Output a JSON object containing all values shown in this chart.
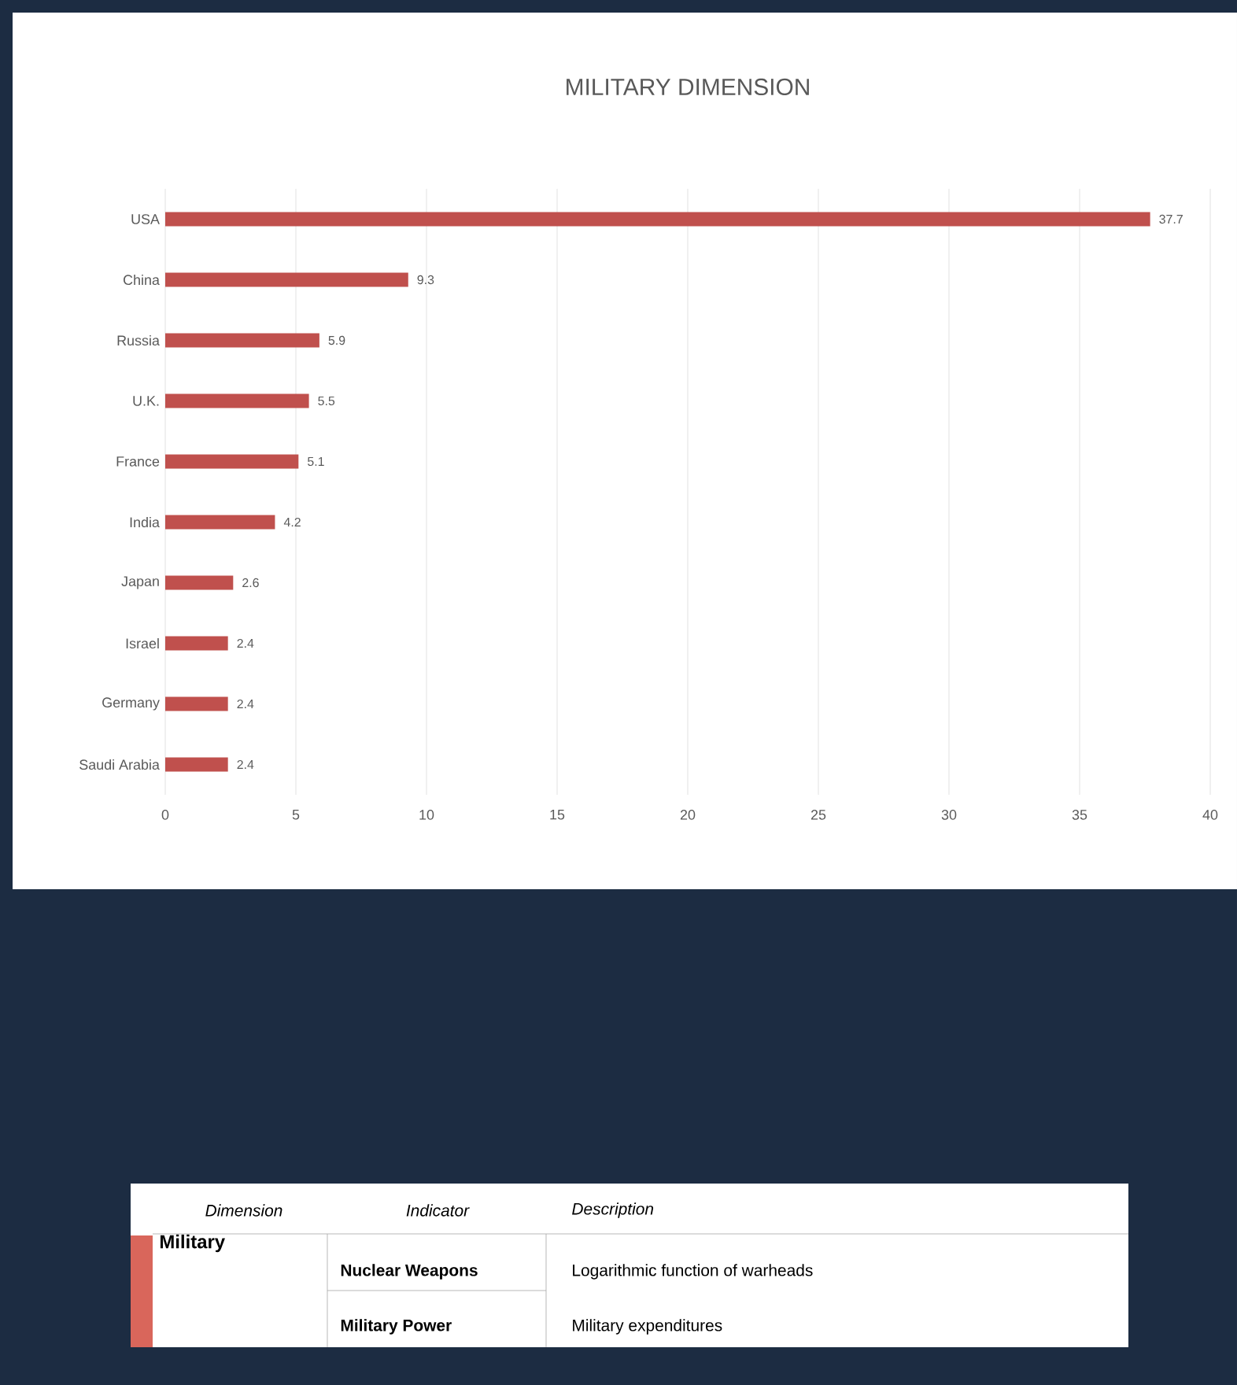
{
  "chart_data": {
    "type": "bar",
    "orientation": "horizontal",
    "title": "MILITARY DIMENSION",
    "categories": [
      "USA",
      "China",
      "Russia",
      "U.K.",
      "France",
      "India",
      "Japan",
      "Israel",
      "Germany",
      "Saudi Arabia"
    ],
    "values": [
      37.7,
      9.3,
      5.9,
      5.5,
      5.1,
      4.2,
      2.6,
      2.4,
      2.4,
      2.4
    ],
    "color": "#c0504d",
    "xlim": [
      0,
      40
    ],
    "xticks": [
      0,
      5,
      10,
      15,
      20,
      25,
      30,
      35,
      40
    ],
    "grid": "x",
    "data_labels": true,
    "annotations": [
      "Dimension",
      "Indicator",
      "Description",
      "Military",
      "Nuclear Weapons",
      "Logarithmic function of warheads",
      "Military Power",
      "Military expenditures"
    ]
  }
}
